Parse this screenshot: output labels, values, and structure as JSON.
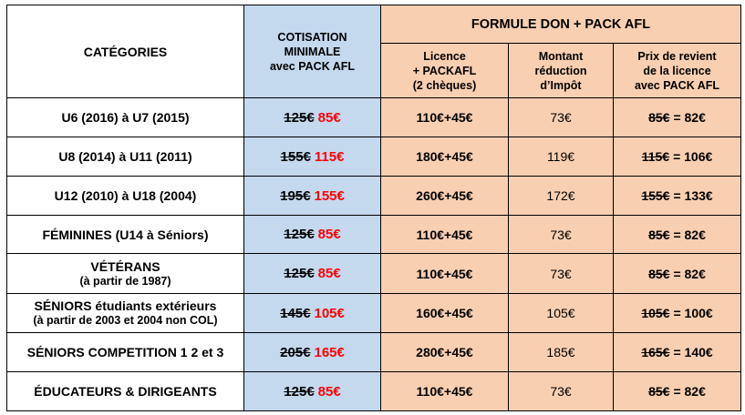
{
  "header": {
    "categories": "CATÉGORIES",
    "cotisation": [
      "COTISATION",
      "MINIMALE",
      "avec PACK AFL"
    ],
    "formule": "FORMULE DON + PACK AFL",
    "licence": [
      "Licence",
      "+ PACKAFL",
      "(2 chèques)"
    ],
    "montant": [
      "Montant",
      "réduction",
      "d’Impôt"
    ],
    "prix": [
      "Prix de revient",
      "de la licence",
      "avec PACK AFL"
    ]
  },
  "rows": [
    {
      "cat": "U6 (2016) à U7 (2015)",
      "cat_sub": "",
      "old": "125€",
      "new": "85€",
      "licence": "110€+45€",
      "montant": "73€",
      "prix_old": "85€",
      "prix_new": "= 82€"
    },
    {
      "cat": "U8 (2014) à U11 (2011)",
      "cat_sub": "",
      "old": "155€",
      "new": "115€",
      "licence": "180€+45€",
      "montant": "119€",
      "prix_old": "115€",
      "prix_new": "= 106€"
    },
    {
      "cat": "U12 (2010) à U18 (2004)",
      "cat_sub": "",
      "old": "195€",
      "new": "155€",
      "licence": "260€+45€",
      "montant": "172€",
      "prix_old": "155€",
      "prix_new": "= 133€"
    },
    {
      "cat": "FÉMININES (U14 à Séniors)",
      "cat_sub": "",
      "old": "125€",
      "new": "85€",
      "licence": "110€+45€",
      "montant": "73€",
      "prix_old": "85€",
      "prix_new": "= 82€"
    },
    {
      "cat": "VÉTÉRANS",
      "cat_sub": "(à partir de 1987)",
      "old": "125€",
      "new": "85€",
      "licence": "110€+45€",
      "montant": "73€",
      "prix_old": "85€",
      "prix_new": "= 82€"
    },
    {
      "cat": "SÉNIORS étudiants extérieurs",
      "cat_sub": "(à partir de 2003 et 2004 non COL)",
      "old": "145€",
      "new": "105€",
      "licence": "160€+45€",
      "montant": "105€",
      "prix_old": "105€",
      "prix_new": "= 100€"
    },
    {
      "cat": "SÉNIORS COMPETITION 1 2 et 3",
      "cat_sub": "",
      "old": "205€",
      "new": "165€",
      "licence": "280€+45€",
      "montant": "185€",
      "prix_old": "165€",
      "prix_new": "= 140€"
    },
    {
      "cat": "ÉDUCATEURS & DIRIGEANTS",
      "cat_sub": "",
      "old": "125€",
      "new": "85€",
      "licence": "110€+45€",
      "montant": "73€",
      "prix_old": "85€",
      "prix_new": "= 82€"
    }
  ],
  "colors": {
    "cotisation_bg": "#c4d8ee",
    "formule_bg": "#f9cfb1",
    "price_new": "#ff0000"
  }
}
